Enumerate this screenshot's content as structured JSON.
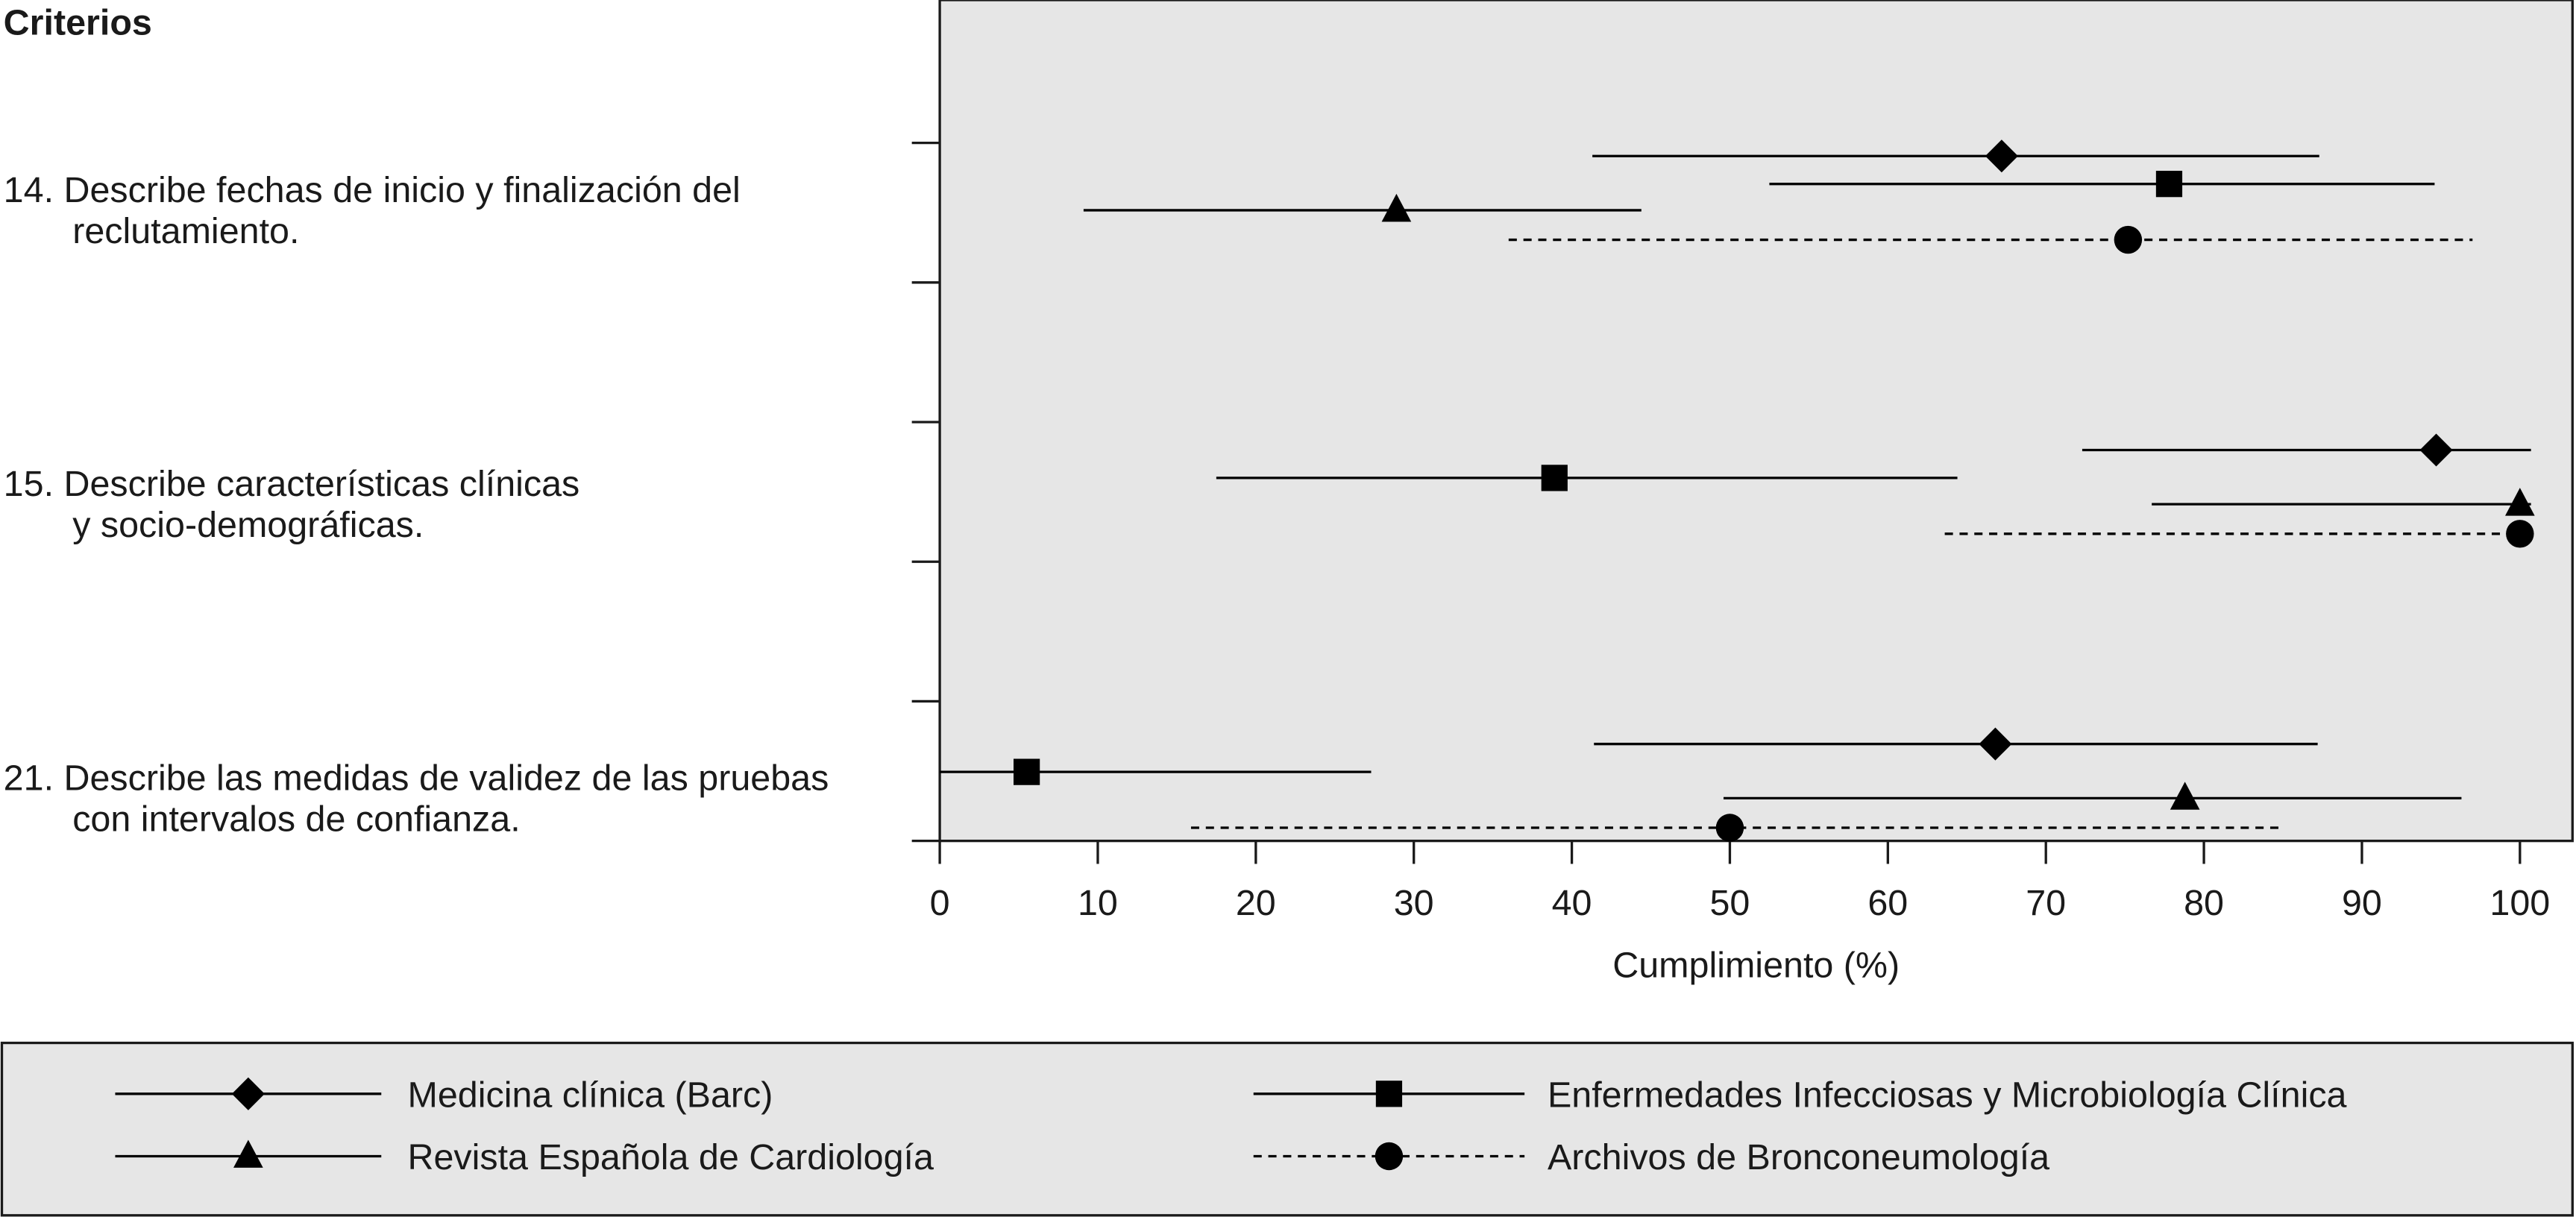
{
  "chart_data": {
    "type": "errorbar",
    "y_label": "Criterios",
    "x_label": "Cumplimiento (%)",
    "categories": [
      [
        "14. Describe fechas de inicio y finalización del",
        "reclutamiento."
      ],
      [
        "15. Describe características clínicas",
        "y socio-demográficas."
      ],
      [
        "21. Describe las medidas de validez de las pruebas",
        "con intervalos de confianza."
      ]
    ],
    "xlim": [
      0,
      103.5
    ],
    "xticks": [
      0,
      10,
      20,
      30,
      40,
      50,
      60,
      70,
      80,
      90,
      100
    ],
    "series": [
      {
        "name": "Medicina clínica (Barc)",
        "color": "#000000",
        "marker": "diamond",
        "dashed": false,
        "values": [
          67.2,
          94.7,
          66.8
        ],
        "ci_low": [
          41.3,
          72.3,
          41.4
        ],
        "ci_high": [
          87.3,
          100.7,
          87.2
        ]
      },
      {
        "name": "Enfermedades Infecciosas y Microbiología Clínica",
        "color": "#000000",
        "marker": "square",
        "dashed": false,
        "values": [
          77.8,
          38.9,
          5.5
        ],
        "ci_low": [
          52.5,
          17.5,
          0
        ],
        "ci_high": [
          94.6,
          64.4,
          27.3
        ]
      },
      {
        "name": "Revista Española de Cardiología",
        "color": "#000000",
        "marker": "triangle",
        "dashed": false,
        "values": [
          28.9,
          100,
          78.8
        ],
        "ci_low": [
          9.1,
          76.7,
          49.6
        ],
        "ci_high": [
          44.4,
          100.7,
          96.3
        ]
      },
      {
        "name": "Archivos de Bronconeumología",
        "color": "#000000",
        "marker": "circle",
        "dashed": true,
        "values": [
          75.2,
          100,
          50
        ],
        "ci_low": [
          36,
          63.6,
          15.9
        ],
        "ci_high": [
          97,
          100.9,
          84.8
        ]
      }
    ]
  }
}
